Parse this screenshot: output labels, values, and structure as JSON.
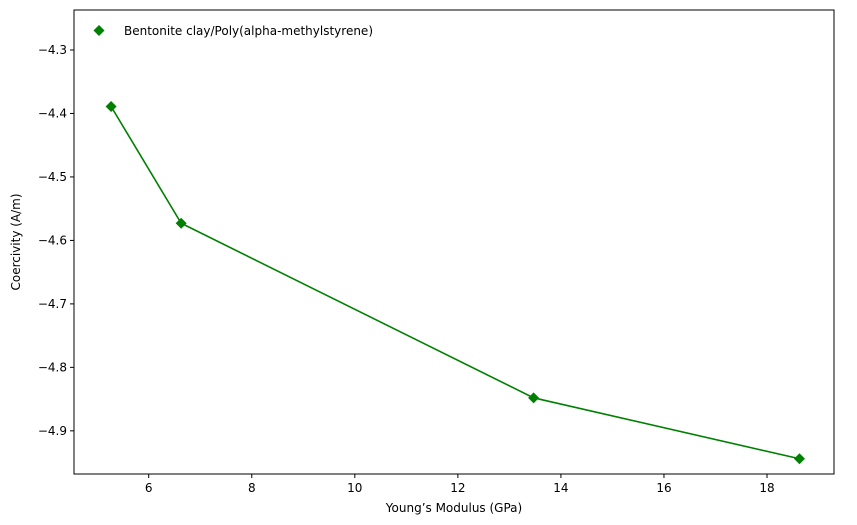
{
  "chart_data": {
    "type": "line",
    "xlabel": "Young’s Modulus (GPa)",
    "ylabel": "Coercivity (A/m)",
    "xlim": [
      4.55,
      19.3
    ],
    "ylim": [
      -4.968,
      -4.237
    ],
    "xticks": [
      6,
      8,
      10,
      12,
      14,
      16,
      18
    ],
    "yticks": [
      -4.9,
      -4.8,
      -4.7,
      -4.6,
      -4.5,
      -4.4,
      -4.3
    ],
    "grid": false,
    "legend_position": "top-left",
    "series": [
      {
        "name": "Bentonite clay/Poly(alpha-methylstyrene)",
        "color": "#008000",
        "marker": "diamond",
        "x": [
          5.27,
          6.63,
          13.47,
          18.63
        ],
        "y": [
          -4.389,
          -4.573,
          -4.848,
          -4.944
        ]
      }
    ]
  }
}
